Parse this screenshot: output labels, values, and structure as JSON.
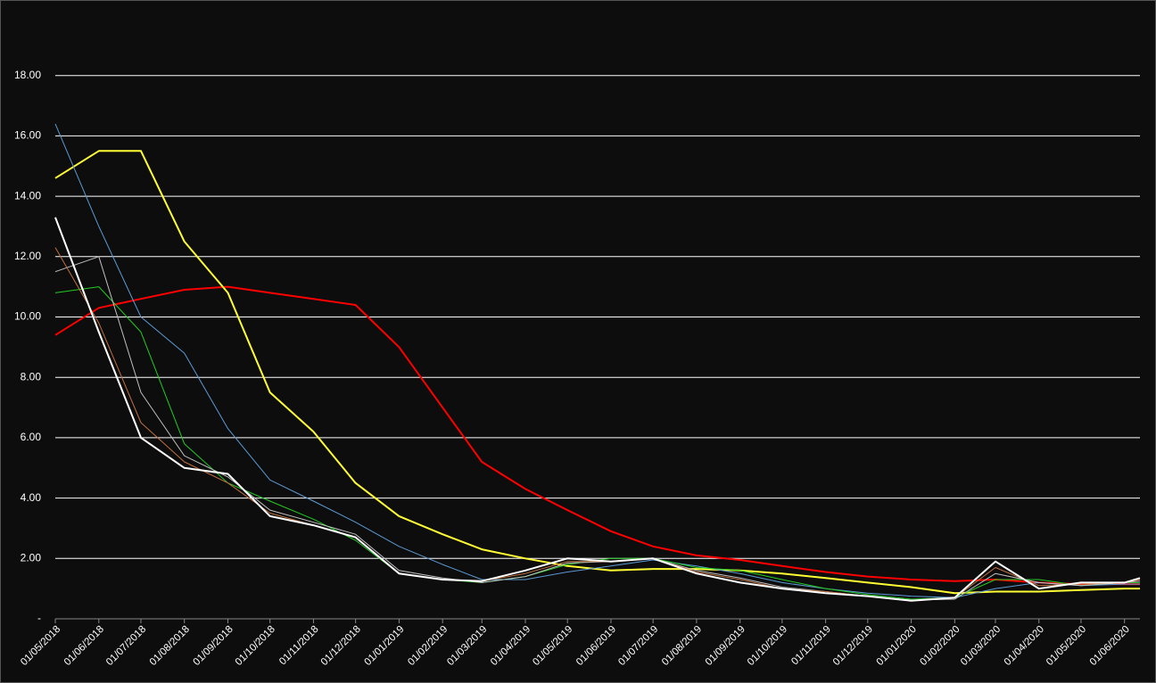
{
  "chart_data": {
    "type": "line",
    "x": [
      "01/05/2018",
      "01/06/2018",
      "01/07/2018",
      "01/08/2018",
      "01/09/2018",
      "01/10/2018",
      "01/11/2018",
      "01/12/2018",
      "01/01/2019",
      "01/02/2019",
      "01/03/2019",
      "01/04/2019",
      "01/05/2019",
      "01/06/2019",
      "01/07/2019",
      "01/08/2019",
      "01/09/2019",
      "01/10/2019",
      "01/11/2019",
      "01/12/2019",
      "01/01/2020",
      "01/02/2020",
      "01/03/2020",
      "01/04/2020",
      "01/05/2020",
      "01/06/2020",
      "12/06/2020"
    ],
    "xlim": [
      "01/05/2018",
      "12/06/2020"
    ],
    "xticks": [
      "01/05/2018",
      "01/06/2018",
      "01/07/2018",
      "01/08/2018",
      "01/09/2018",
      "01/10/2018",
      "01/11/2018",
      "01/12/2018",
      "01/01/2019",
      "01/02/2019",
      "01/03/2019",
      "01/04/2019",
      "01/05/2019",
      "01/06/2019",
      "01/07/2019",
      "01/08/2019",
      "01/09/2019",
      "01/10/2019",
      "01/11/2019",
      "01/12/2019",
      "01/01/2020",
      "01/02/2020",
      "01/03/2020",
      "01/04/2020",
      "01/05/2020",
      "01/06/2020"
    ],
    "ylim": [
      0,
      20
    ],
    "yticks": [
      {
        "value": 0,
        "label": "-"
      },
      {
        "value": 2,
        "label": "2.00"
      },
      {
        "value": 4,
        "label": "4.00"
      },
      {
        "value": 6,
        "label": "6.00"
      },
      {
        "value": 8,
        "label": "8.00"
      },
      {
        "value": 10,
        "label": "10.00"
      },
      {
        "value": 12,
        "label": "12.00"
      },
      {
        "value": 14,
        "label": "14.00"
      },
      {
        "value": 16,
        "label": "16.00"
      },
      {
        "value": 18,
        "label": "18.00"
      }
    ],
    "grid": true,
    "series": [
      {
        "color": "#ff0000",
        "width": 2,
        "values": [
          9.4,
          10.3,
          10.6,
          10.9,
          11.0,
          10.8,
          10.6,
          10.4,
          9.0,
          7.0,
          5.2,
          4.3,
          3.6,
          2.9,
          2.4,
          2.1,
          1.95,
          1.75,
          1.55,
          1.4,
          1.3,
          1.25,
          1.3,
          1.2,
          1.15,
          1.15,
          1.15
        ]
      },
      {
        "color": "#ffff33",
        "width": 2,
        "values": [
          14.6,
          15.5,
          15.5,
          12.5,
          10.8,
          7.5,
          6.2,
          4.5,
          3.4,
          2.8,
          2.3,
          2.0,
          1.75,
          1.6,
          1.65,
          1.65,
          1.6,
          1.5,
          1.35,
          1.2,
          1.05,
          0.85,
          0.9,
          0.9,
          0.95,
          1.0,
          1.0
        ]
      },
      {
        "color": "#5b9bd5",
        "width": 1,
        "values": [
          16.4,
          13.0,
          10.0,
          8.8,
          6.3,
          4.6,
          3.9,
          3.2,
          2.4,
          1.8,
          1.3,
          1.3,
          1.55,
          1.75,
          1.95,
          1.75,
          1.5,
          1.2,
          1.0,
          0.85,
          0.75,
          0.7,
          1.0,
          1.2,
          1.1,
          1.15,
          1.15
        ]
      },
      {
        "color": "#22cc22",
        "width": 1,
        "values": [
          10.8,
          11.0,
          9.5,
          5.8,
          4.5,
          3.9,
          3.3,
          2.6,
          1.5,
          1.3,
          1.2,
          1.4,
          1.8,
          2.0,
          2.0,
          1.7,
          1.6,
          1.3,
          1.0,
          0.8,
          0.65,
          0.7,
          1.3,
          1.3,
          1.1,
          1.2,
          1.2
        ]
      },
      {
        "color": "#c0c0c0",
        "width": 1,
        "values": [
          11.5,
          12.0,
          7.5,
          5.4,
          4.7,
          3.6,
          3.2,
          2.8,
          1.6,
          1.35,
          1.2,
          1.4,
          1.85,
          1.9,
          2.0,
          1.6,
          1.35,
          1.05,
          0.9,
          0.75,
          0.62,
          0.65,
          1.5,
          1.2,
          1.1,
          1.2,
          1.25
        ]
      },
      {
        "color": "#c07040",
        "width": 1,
        "values": [
          12.3,
          9.8,
          6.5,
          5.2,
          4.5,
          3.5,
          3.1,
          2.7,
          1.5,
          1.3,
          1.25,
          1.5,
          1.9,
          1.9,
          2.0,
          1.55,
          1.3,
          1.0,
          0.9,
          0.75,
          0.6,
          0.7,
          1.7,
          1.1,
          1.15,
          1.2,
          1.3
        ]
      },
      {
        "color": "#ffffff",
        "width": 2,
        "values": [
          13.3,
          9.5,
          6.0,
          5.0,
          4.8,
          3.4,
          3.1,
          2.7,
          1.5,
          1.3,
          1.25,
          1.6,
          2.0,
          1.9,
          2.0,
          1.5,
          1.2,
          1.0,
          0.85,
          0.75,
          0.6,
          0.7,
          1.9,
          1.0,
          1.2,
          1.2,
          1.35
        ]
      }
    ]
  }
}
